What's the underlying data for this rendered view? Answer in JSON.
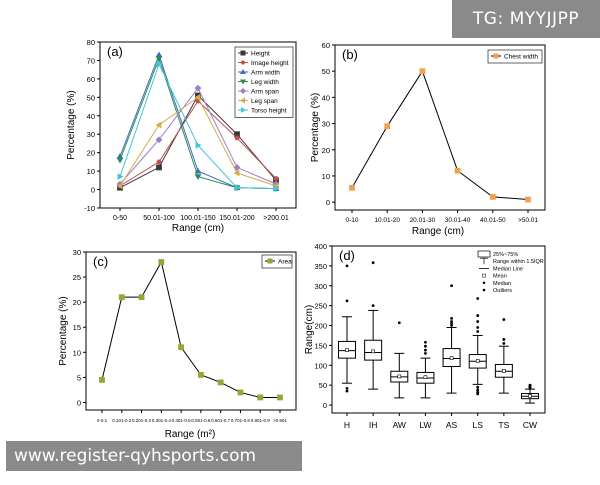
{
  "watermarks": {
    "top": "TG: MYYJJPP",
    "bottom": "www.register-qyhsports.com"
  },
  "chart_data": [
    {
      "panel_label": "(a)",
      "type": "line",
      "categories": [
        "0-50",
        "50.01-100",
        "100.01-150",
        "150.01-200",
        ">200.01"
      ],
      "xlabel": "Range (cm)",
      "ylabel": "Percentage (%)",
      "ylim": [
        -10,
        80
      ],
      "yticks": [
        -10,
        0,
        10,
        20,
        30,
        40,
        50,
        60,
        70,
        80
      ],
      "series": [
        {
          "name": "Height",
          "color": "#3a3a3a",
          "marker": "square",
          "values": [
            1,
            12,
            51,
            30,
            5
          ]
        },
        {
          "name": "Image height",
          "color": "#c0504d",
          "marker": "circle",
          "values": [
            2,
            15,
            48,
            28,
            6
          ]
        },
        {
          "name": "Arm width",
          "color": "#3f6fb5",
          "marker": "triangle-up",
          "values": [
            18,
            73,
            10,
            1,
            0.5
          ]
        },
        {
          "name": "Leg width",
          "color": "#2e8b57",
          "marker": "triangle-down",
          "values": [
            16,
            71,
            7,
            1,
            0.5
          ]
        },
        {
          "name": "Arm span",
          "color": "#9b7fcf",
          "marker": "diamond",
          "values": [
            3,
            27,
            55,
            12,
            3
          ]
        },
        {
          "name": "Leg span",
          "color": "#d4aa4a",
          "marker": "triangle-left",
          "values": [
            2,
            35,
            50,
            9,
            2
          ]
        },
        {
          "name": "Torso height",
          "color": "#3fc6d8",
          "marker": "triangle-right",
          "values": [
            7,
            68,
            24,
            1,
            0.5
          ]
        }
      ]
    },
    {
      "panel_label": "(b)",
      "type": "line",
      "categories": [
        "0-10",
        "10.01-20",
        "20.01-30",
        "30.01-40",
        "40.01-50",
        ">50.01"
      ],
      "xlabel": "Range (cm)",
      "ylabel": "Percentage (%)",
      "ylim": [
        -3,
        60
      ],
      "yticks": [
        0,
        10,
        20,
        30,
        40,
        50,
        60
      ],
      "series": [
        {
          "name": "Chest width",
          "color": "#f0a050",
          "marker": "square",
          "values": [
            5.5,
            29,
            50,
            12,
            2,
            1
          ]
        }
      ]
    },
    {
      "panel_label": "(c)",
      "type": "line",
      "categories": [
        "0-0.1",
        "0.101-0.2",
        "0.201-0.3",
        "0.301-0.4",
        "0.401-0.5",
        "0.501-0.6",
        "0.601-0.7",
        "0.701-0.8",
        "0.801-0.9",
        ">0.901"
      ],
      "xlabel": "Range (m²)",
      "ylabel": "Percentage (%)",
      "ylim": [
        -1.5,
        30
      ],
      "yticks": [
        0,
        5,
        10,
        15,
        20,
        25,
        30
      ],
      "series": [
        {
          "name": "Area",
          "color": "#8caa3a",
          "marker": "square",
          "values": [
            4.5,
            21,
            21,
            28,
            11,
            5.5,
            4,
            2,
            1,
            1
          ]
        }
      ]
    },
    {
      "panel_label": "(d)",
      "type": "box",
      "categories": [
        "H",
        "IH",
        "AW",
        "LW",
        "AS",
        "LS",
        "TS",
        "CW"
      ],
      "ylabel": "Range(cm)",
      "ylim": [
        -20,
        400
      ],
      "yticks": [
        0,
        50,
        100,
        150,
        200,
        250,
        300,
        350,
        400
      ],
      "legend": [
        "25%~75%",
        "Range within 1.5IQR",
        "Median Line",
        "Mean",
        "Median",
        "Outliers"
      ],
      "boxes": [
        {
          "name": "H",
          "whisker_low": 55,
          "q1": 118,
          "median": 137,
          "mean": 138,
          "q3": 160,
          "whisker_high": 222,
          "outliers": [
            35,
            42,
            262,
            350
          ]
        },
        {
          "name": "IH",
          "whisker_low": 40,
          "q1": 113,
          "median": 132,
          "mean": 135,
          "q3": 163,
          "whisker_high": 238,
          "outliers": [
            250,
            358
          ]
        },
        {
          "name": "AW",
          "whisker_low": 18,
          "q1": 58,
          "median": 71,
          "mean": 72,
          "q3": 85,
          "whisker_high": 130,
          "outliers": [
            207
          ]
        },
        {
          "name": "LW",
          "whisker_low": 18,
          "q1": 55,
          "median": 68,
          "mean": 70,
          "q3": 82,
          "whisker_high": 118,
          "outliers": [
            130,
            138,
            148,
            158
          ]
        },
        {
          "name": "AS",
          "whisker_low": 30,
          "q1": 97,
          "median": 117,
          "mean": 118,
          "q3": 142,
          "whisker_high": 195,
          "outliers": [
            200,
            205,
            210,
            218,
            300
          ]
        },
        {
          "name": "LS",
          "whisker_low": 52,
          "q1": 93,
          "median": 110,
          "mean": 111,
          "q3": 127,
          "whisker_high": 175,
          "outliers": [
            28,
            32,
            38,
            45,
            185,
            195,
            210,
            225,
            268
          ]
        },
        {
          "name": "TS",
          "whisker_low": 30,
          "q1": 70,
          "median": 85,
          "mean": 86,
          "q3": 102,
          "whisker_high": 148,
          "outliers": [
            155,
            165,
            215
          ]
        },
        {
          "name": "CW",
          "whisker_low": 5,
          "q1": 16,
          "median": 22,
          "mean": 23,
          "q3": 29,
          "whisker_high": 40,
          "outliers": [
            42,
            44,
            46,
            48,
            50
          ]
        }
      ]
    }
  ]
}
